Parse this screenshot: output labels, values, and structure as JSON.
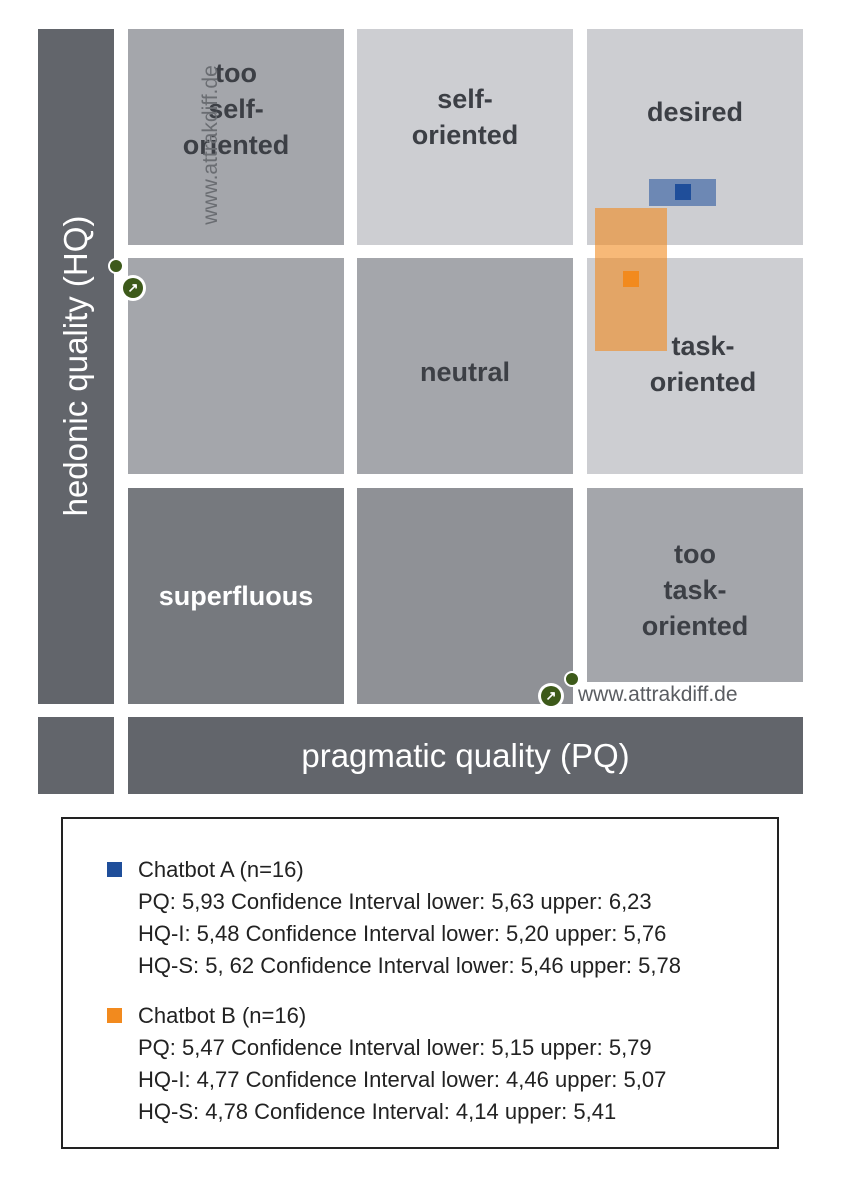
{
  "chart_data": {
    "type": "scatter",
    "title": "",
    "xlabel": "pragmatic quality (PQ)",
    "ylabel": "hedonic quality (HQ)",
    "regions": [
      {
        "name": "too self-oriented",
        "label": "too\nself-\noriented"
      },
      {
        "name": "self-oriented",
        "label": "self-\noriented"
      },
      {
        "name": "desired",
        "label": "desired"
      },
      {
        "name": "empty-mid-left",
        "label": ""
      },
      {
        "name": "neutral",
        "label": "neutral"
      },
      {
        "name": "task-oriented",
        "label": "task-\noriented"
      },
      {
        "name": "superfluous",
        "label": "superfluous"
      },
      {
        "name": "empty-bottom-mid",
        "label": ""
      },
      {
        "name": "too task-oriented",
        "label": "too\ntask-\noriented"
      }
    ],
    "series": [
      {
        "name": "Chatbot A (n=16)",
        "color": "#1f4e9a",
        "pq": 5.93,
        "hq": 5.55,
        "pq_ci": [
          5.63,
          6.23
        ],
        "hq_ci": [
          5.43,
          5.67
        ]
      },
      {
        "name": "Chatbot B (n=16)",
        "color": "#f28a1e",
        "pq": 5.47,
        "hq": 4.78,
        "pq_ci": [
          5.15,
          5.79
        ],
        "hq_ci": [
          4.14,
          5.41
        ]
      }
    ],
    "xlim": [
      -3,
      3
    ],
    "ylim": [
      -3,
      3
    ]
  },
  "watermark": "www.attrakdiff.de",
  "legend": [
    {
      "name": "Chatbot A (n=16)",
      "color": "#1f4e9a",
      "lines": [
        "PQ: 5,93 Confidence Interval lower: 5,63 upper: 6,23",
        "HQ-I: 5,48 Confidence Interval lower: 5,20 upper: 5,76",
        "HQ-S: 5, 62 Confidence Interval lower: 5,46 upper: 5,78"
      ]
    },
    {
      "name": "Chatbot B (n=16)",
      "color": "#f28a1e",
      "lines": [
        "PQ: 5,47 Confidence Interval lower: 5,15 upper: 5,79",
        "HQ-I: 4,77 Confidence Interval lower: 4,46 upper: 5,07",
        "HQ-S: 4,78 Confidence Interval: 4,14 upper: 5,41"
      ]
    }
  ]
}
